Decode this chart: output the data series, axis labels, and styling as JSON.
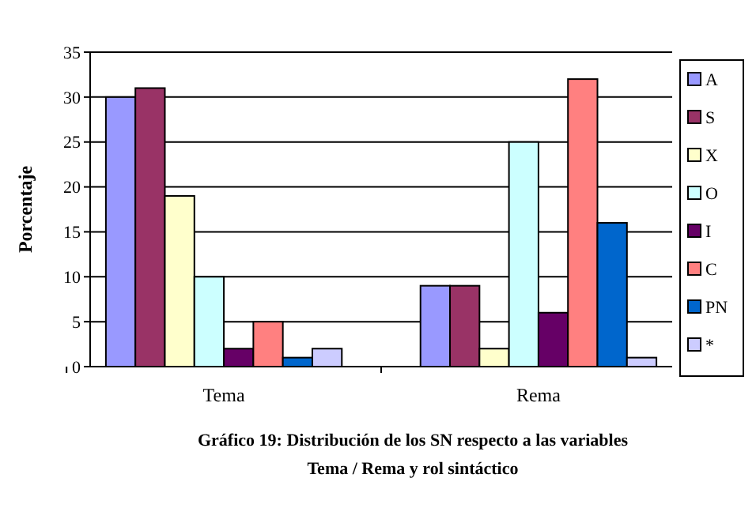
{
  "chart_data": {
    "type": "bar",
    "title": "Gráfico 19: Distribución de los SN respecto a las variables Tema / Rema y rol sintáctico",
    "ylabel": "Porcentaje",
    "categories": [
      "Tema",
      "Rema"
    ],
    "series": [
      {
        "name": "A",
        "color": "#9999ff",
        "values": [
          30,
          9
        ]
      },
      {
        "name": "S",
        "color": "#993366",
        "values": [
          31,
          9
        ]
      },
      {
        "name": "X",
        "color": "#ffffcc",
        "values": [
          19,
          2
        ]
      },
      {
        "name": "O",
        "color": "#ccffff",
        "values": [
          10,
          25
        ]
      },
      {
        "name": "I",
        "color": "#660066",
        "values": [
          2,
          6
        ]
      },
      {
        "name": "C",
        "color": "#ff8080",
        "values": [
          5,
          32
        ]
      },
      {
        "name": "PN",
        "color": "#0066cc",
        "values": [
          1,
          16
        ]
      },
      {
        "name": "*",
        "color": "#ccccff",
        "values": [
          2,
          1
        ]
      }
    ],
    "ylim": [
      0,
      35
    ],
    "yticks": [
      0,
      5,
      10,
      15,
      20,
      25,
      30,
      35
    ],
    "grid": "y",
    "legend": "right"
  }
}
